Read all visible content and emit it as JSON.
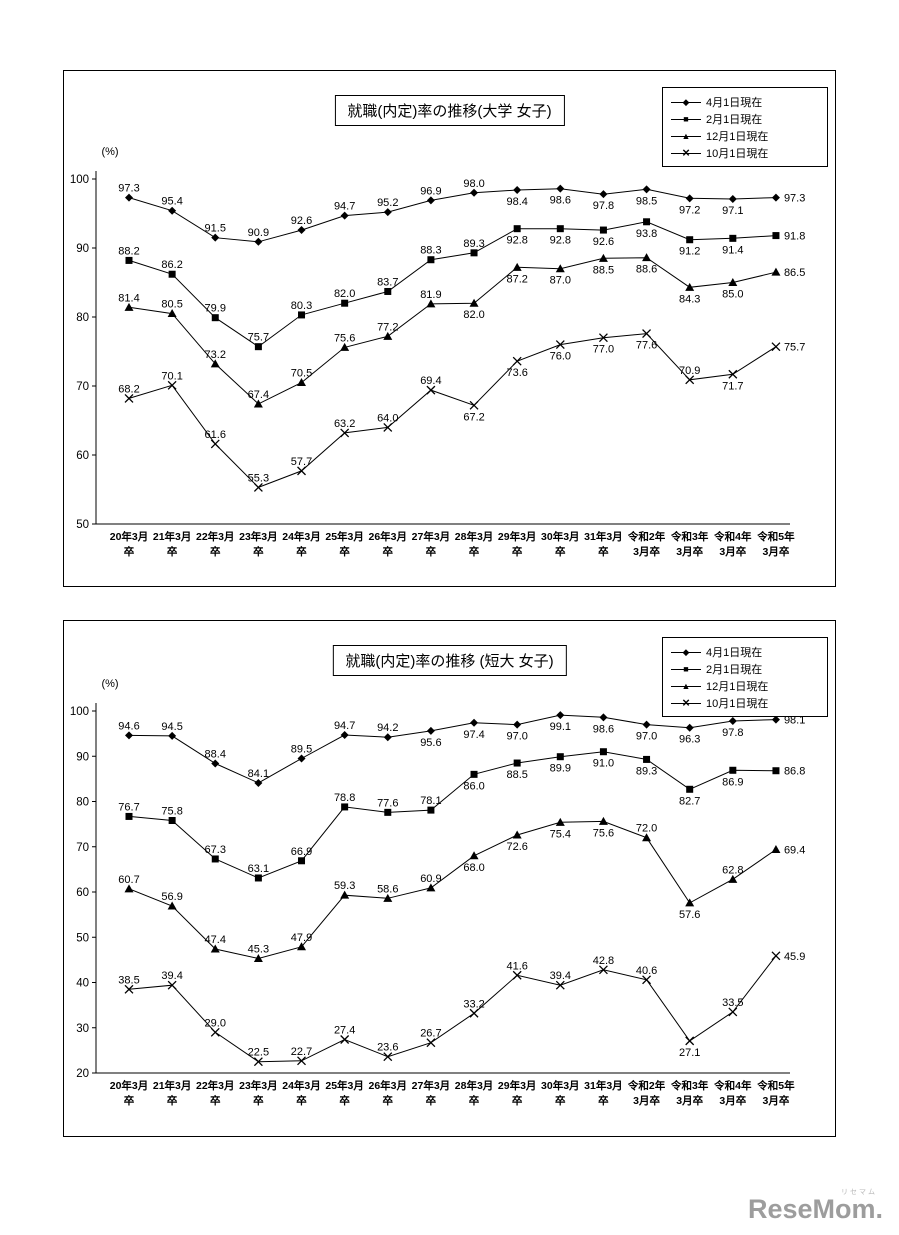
{
  "page_title": "就職(内定)率の推移",
  "chart_data": [
    {
      "type": "line",
      "title": "就職(内定)率の推移(大学 女子)",
      "ylabel": "(%)",
      "ylim": [
        50,
        100
      ],
      "ytick_interval": 10,
      "grid": false,
      "legend_position": "top-right",
      "categories": [
        "20年3月卒",
        "21年3月卒",
        "22年3月卒",
        "23年3月卒",
        "24年3月卒",
        "25年3月卒",
        "26年3月卒",
        "27年3月卒",
        "28年3月卒",
        "29年3月卒",
        "30年3月卒",
        "31年3月卒",
        "令和2年3月卒",
        "令和3年3月卒",
        "令和4年3月卒",
        "令和5年3月卒"
      ],
      "series": [
        {
          "name": "4月1日現在",
          "marker": "diamond",
          "values": [
            97.3,
            95.4,
            91.5,
            90.9,
            92.6,
            94.7,
            95.2,
            96.9,
            98.0,
            98.4,
            98.6,
            97.8,
            98.5,
            97.2,
            97.1,
            97.3
          ],
          "label_side": "aaaaaaaaabbbbbbr"
        },
        {
          "name": "2月1日現在",
          "marker": "square",
          "values": [
            88.2,
            86.2,
            79.9,
            75.7,
            80.3,
            82.0,
            83.7,
            88.3,
            89.3,
            92.8,
            92.8,
            92.6,
            93.8,
            91.2,
            91.4,
            91.8
          ],
          "label_side": "aaaaaaaaabbbbbbr"
        },
        {
          "name": "12月1日現在",
          "marker": "triangle",
          "values": [
            81.4,
            80.5,
            73.2,
            67.4,
            70.5,
            75.6,
            77.2,
            81.9,
            82.0,
            87.2,
            87.0,
            88.5,
            88.6,
            84.3,
            85.0,
            86.5
          ],
          "label_side": "aaaaaaaabbbbbbbr"
        },
        {
          "name": "10月1日現在",
          "marker": "x",
          "values": [
            68.2,
            70.1,
            61.6,
            55.3,
            57.7,
            63.2,
            64.0,
            69.4,
            67.2,
            73.6,
            76.0,
            77.0,
            77.6,
            70.9,
            71.7,
            75.7
          ],
          "label_side": "aaaaaaaabbbbbabr"
        }
      ]
    },
    {
      "type": "line",
      "title": "就職(内定)率の推移 (短大 女子)",
      "ylabel": "(%)",
      "ylim": [
        20,
        100
      ],
      "ytick_interval": 10,
      "grid": false,
      "legend_position": "top-right",
      "categories": [
        "20年3月卒",
        "21年3月卒",
        "22年3月卒",
        "23年3月卒",
        "24年3月卒",
        "25年3月卒",
        "26年3月卒",
        "27年3月卒",
        "28年3月卒",
        "29年3月卒",
        "30年3月卒",
        "31年3月卒",
        "令和2年3月卒",
        "令和3年3月卒",
        "令和4年3月卒",
        "令和5年3月卒"
      ],
      "series": [
        {
          "name": "4月1日現在",
          "marker": "diamond",
          "values": [
            94.6,
            94.5,
            88.4,
            84.1,
            89.5,
            94.7,
            94.2,
            95.6,
            97.4,
            97.0,
            99.1,
            98.6,
            97.0,
            96.3,
            97.8,
            98.1
          ],
          "label_side": "aaaaaaabbbbbbbbr"
        },
        {
          "name": "2月1日現在",
          "marker": "square",
          "values": [
            76.7,
            75.8,
            67.3,
            63.1,
            66.9,
            78.8,
            77.6,
            78.1,
            86.0,
            88.5,
            89.9,
            91.0,
            89.3,
            82.7,
            86.9,
            86.8
          ],
          "label_side": "aaaaaaaabbbbbbbr"
        },
        {
          "name": "12月1日現在",
          "marker": "triangle",
          "values": [
            60.7,
            56.9,
            47.4,
            45.3,
            47.9,
            59.3,
            58.6,
            60.9,
            68.0,
            72.6,
            75.4,
            75.6,
            72.0,
            57.6,
            62.8,
            69.4
          ],
          "label_side": "aaaaaaaabbbbabar"
        },
        {
          "name": "10月1日現在",
          "marker": "x",
          "values": [
            38.5,
            39.4,
            29.0,
            22.5,
            22.7,
            27.4,
            23.6,
            26.7,
            33.2,
            41.6,
            39.4,
            42.8,
            40.6,
            27.1,
            33.5,
            45.9
          ],
          "label_side": "aaaaaaaaaaaaabar"
        }
      ]
    }
  ],
  "watermark": {
    "text": "ReseMom.",
    "ruby": "リセマム"
  }
}
